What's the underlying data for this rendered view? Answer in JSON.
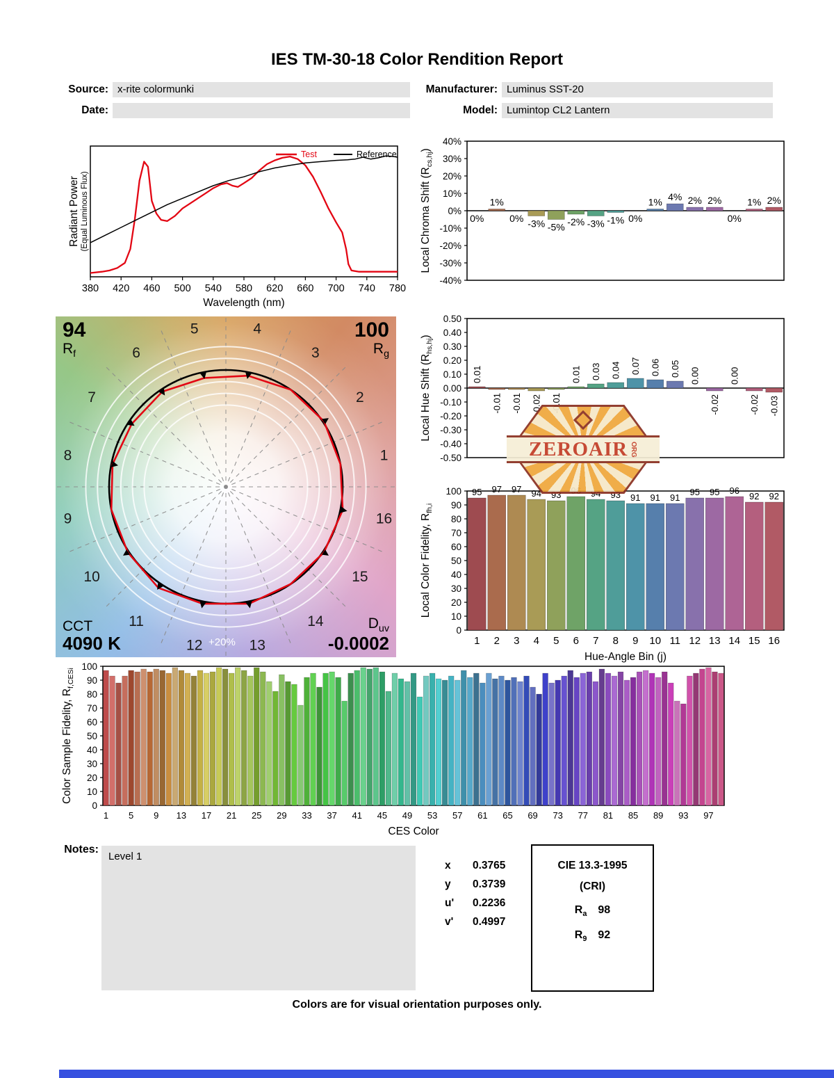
{
  "title": "IES TM-30-18 Color Rendition Report",
  "header": {
    "source_label": "Source:",
    "source_value": "x-rite colormunki",
    "date_label": "Date:",
    "date_value": "",
    "manufacturer_label": "Manufacturer:",
    "manufacturer_value": "Luminus SST-20",
    "model_label": "Model:",
    "model_value": "Lumintop CL2 Lantern"
  },
  "hue_bin_colors": [
    "#9E4B50",
    "#AA6B4D",
    "#AE8A52",
    "#A99B56",
    "#8FA15B",
    "#6FA367",
    "#55A384",
    "#4F9D99",
    "#4E93A8",
    "#567FAC",
    "#6C79B0",
    "#8871AC",
    "#9D69A3",
    "#AE6495",
    "#B45F7E",
    "#B15A65"
  ],
  "cvg": {
    "rf_value": "94",
    "rf_label": "R",
    "rf_sub": "f",
    "rg_value": "100",
    "rg_label": "R",
    "rg_sub": "g",
    "cct_label": "CCT",
    "cct_value": "4090 K",
    "duv_label": "D",
    "duv_sub": "uv",
    "duv_value": "-0.0002",
    "ring_label": "+20%",
    "bin_numbers": [
      "1",
      "2",
      "3",
      "4",
      "5",
      "6",
      "7",
      "8",
      "9",
      "10",
      "11",
      "12",
      "13",
      "14",
      "15",
      "16"
    ],
    "rcs_percent": [
      0,
      1,
      0,
      -3,
      -5,
      -2,
      -3,
      -1,
      0,
      1,
      4,
      2,
      2,
      0,
      1,
      2
    ]
  },
  "watermark": {
    "line1": "ZEROAIR",
    "line2": "ORG"
  },
  "chart_data": [
    {
      "id": "spd",
      "type": "line",
      "xlabel": "Wavelength (nm)",
      "ylabel": "Radiant Power",
      "ylabel2": "(Equal Luminous Flux)",
      "xlim": [
        380,
        780
      ],
      "xticks": [
        380,
        420,
        460,
        500,
        540,
        580,
        620,
        660,
        700,
        740,
        780
      ],
      "legend": [
        {
          "name": "Test",
          "color": "#e30613"
        },
        {
          "name": "Reference",
          "color": "#000000"
        }
      ],
      "series": [
        {
          "name": "Test",
          "color": "#e30613",
          "lw": 2.3,
          "x": [
            380,
            395,
            405,
            415,
            425,
            432,
            438,
            444,
            450,
            455,
            460,
            466,
            472,
            480,
            490,
            500,
            510,
            520,
            530,
            540,
            550,
            558,
            565,
            572,
            580,
            590,
            600,
            610,
            620,
            630,
            640,
            650,
            660,
            670,
            680,
            690,
            700,
            708,
            713,
            716,
            720,
            730,
            780
          ],
          "y": [
            0.03,
            0.04,
            0.05,
            0.07,
            0.11,
            0.22,
            0.46,
            0.76,
            0.91,
            0.87,
            0.6,
            0.5,
            0.45,
            0.44,
            0.48,
            0.54,
            0.58,
            0.62,
            0.66,
            0.7,
            0.73,
            0.74,
            0.72,
            0.71,
            0.74,
            0.78,
            0.84,
            0.89,
            0.92,
            0.94,
            0.95,
            0.93,
            0.88,
            0.79,
            0.67,
            0.54,
            0.43,
            0.35,
            0.22,
            0.1,
            0.05,
            0.04,
            0.04
          ]
        },
        {
          "name": "Reference",
          "color": "#000000",
          "lw": 1.5,
          "x": [
            380,
            400,
            420,
            440,
            460,
            480,
            500,
            520,
            540,
            560,
            580,
            600,
            620,
            640,
            660,
            680,
            700,
            715,
            725,
            735,
            745,
            755,
            765,
            775,
            780
          ],
          "y": [
            0.27,
            0.33,
            0.39,
            0.45,
            0.51,
            0.57,
            0.62,
            0.67,
            0.72,
            0.76,
            0.79,
            0.83,
            0.86,
            0.88,
            0.9,
            0.91,
            0.92,
            0.925,
            0.93,
            0.945,
            0.93,
            0.94,
            0.955,
            0.95,
            0.945
          ]
        }
      ]
    },
    {
      "id": "local_chroma_shift",
      "type": "bar",
      "ylabel_main": "Local Chroma Shift (R",
      "ylabel_sub": "cs,hj",
      "ylabel_end": ")",
      "ylim": [
        -40,
        40
      ],
      "yticks": [
        "40%",
        "30%",
        "20%",
        "10%",
        "0%",
        "-10%",
        "-20%",
        "-30%",
        "-40%"
      ],
      "categories": [
        1,
        2,
        3,
        4,
        5,
        6,
        7,
        8,
        9,
        10,
        11,
        12,
        13,
        14,
        15,
        16
      ],
      "values": [
        0,
        1,
        0,
        -3,
        -5,
        -2,
        -3,
        -1,
        0,
        1,
        4,
        2,
        2,
        0,
        1,
        2
      ],
      "labels": [
        "0%",
        "1%",
        "0%",
        "-3%",
        "-5%",
        "-2%",
        "-3%",
        "-1%",
        "0%",
        "1%",
        "4%",
        "2%",
        "2%",
        "0%",
        "1%",
        "2%"
      ]
    },
    {
      "id": "local_hue_shift",
      "type": "bar",
      "ylabel_main": "Local Hue Shift (R",
      "ylabel_sub": "hs,hj",
      "ylabel_end": ")",
      "ylim": [
        -0.5,
        0.5
      ],
      "yticks": [
        "0.50",
        "0.40",
        "0.30",
        "0.20",
        "0.10",
        "0.00",
        "-0.10",
        "-0.20",
        "-0.30",
        "-0.40",
        "-0.50"
      ],
      "categories": [
        1,
        2,
        3,
        4,
        5,
        6,
        7,
        8,
        9,
        10,
        11,
        12,
        13,
        14,
        15,
        16
      ],
      "values": [
        0.01,
        -0.01,
        -0.01,
        -0.02,
        -0.01,
        0.01,
        0.03,
        0.04,
        0.07,
        0.06,
        0.05,
        0,
        -0.02,
        0,
        -0.02,
        -0.03
      ],
      "labels": [
        "0.01",
        "-0.01",
        "-0.01",
        "-0.02",
        "-0.01",
        "0.01",
        "0.03",
        "0.04",
        "0.07",
        "0.06",
        "0.05",
        "0.00",
        "-0.02",
        "0.00",
        "-0.02",
        "-0.03"
      ]
    },
    {
      "id": "local_color_fidelity",
      "type": "bar",
      "ylabel_main": "Local Color Fidelity, R",
      "ylabel_sub": "fh,i",
      "ylabel_end": "",
      "xlabel": "Hue-Angle Bin (j)",
      "ylim": [
        0,
        100
      ],
      "categories": [
        "1",
        "2",
        "3",
        "4",
        "5",
        "6",
        "7",
        "8",
        "9",
        "10",
        "11",
        "12",
        "13",
        "14",
        "15",
        "16"
      ],
      "values": [
        95,
        97,
        97,
        94,
        93,
        96,
        94,
        93,
        91,
        91,
        91,
        95,
        95,
        96,
        92,
        92
      ]
    },
    {
      "id": "color_sample_fidelity",
      "type": "bar",
      "ylabel_main": "Color Sample Fidelity, R",
      "ylabel_sub": "f,CESi",
      "ylabel_end": "",
      "xlabel": "CES Color",
      "ylim": [
        0,
        100
      ],
      "xtick_step": 4,
      "values": [
        97,
        93,
        88,
        93,
        97,
        96,
        98,
        96,
        98,
        97,
        95,
        99,
        97,
        95,
        93,
        97,
        95,
        96,
        99,
        98,
        95,
        99,
        97,
        93,
        99,
        96,
        89,
        82,
        94,
        89,
        87,
        72,
        92,
        95,
        85,
        95,
        96,
        92,
        75,
        95,
        97,
        99,
        98,
        99,
        96,
        82,
        95,
        91,
        89,
        95,
        78,
        93,
        95,
        91,
        90,
        93,
        90,
        97,
        92,
        95,
        88,
        95,
        91,
        93,
        90,
        92,
        89,
        93,
        85,
        80,
        95,
        88,
        90,
        93,
        97,
        92,
        95,
        96,
        89,
        98,
        95,
        93,
        96,
        90,
        92,
        96,
        97,
        95,
        92,
        96,
        88,
        75,
        73,
        93,
        95,
        98,
        99,
        96,
        95
      ]
    }
  ],
  "notes": {
    "label": "Notes:",
    "content": "Level 1",
    "chromaticity": [
      {
        "label": "x",
        "value": "0.3765"
      },
      {
        "label": "y",
        "value": "0.3739"
      },
      {
        "label": "u'",
        "value": "0.2236"
      },
      {
        "label": "v'",
        "value": "0.4997"
      }
    ]
  },
  "cri_box": {
    "title": "CIE 13.3-1995",
    "subtitle": "(CRI)",
    "rows": [
      {
        "label": "R",
        "sub": "a",
        "value": "98"
      },
      {
        "label": "R",
        "sub": "9",
        "value": "92"
      }
    ]
  },
  "footer": "Colors are for visual orientation purposes only.",
  "colors": {
    "accent_red": "#e30613",
    "field_gray": "#e3e3e3",
    "bottom_bar_blue": "#3650e0"
  }
}
